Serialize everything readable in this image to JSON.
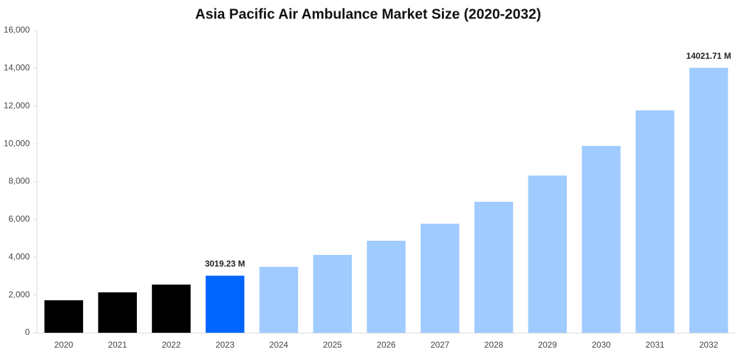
{
  "chart_data": {
    "type": "bar",
    "title": "Asia Pacific Air Ambulance Market Size (2020-2032)",
    "categories": [
      "2020",
      "2021",
      "2022",
      "2023",
      "2024",
      "2025",
      "2026",
      "2027",
      "2028",
      "2029",
      "2030",
      "2031",
      "2032"
    ],
    "values": [
      1720,
      2140,
      2550,
      3019.23,
      3490,
      4120,
      4870,
      5770,
      6930,
      8320,
      9890,
      11770,
      14021.71
    ],
    "value_labels": [
      null,
      null,
      null,
      "3019.23 M",
      null,
      null,
      null,
      null,
      null,
      null,
      null,
      null,
      "14021.71 M"
    ],
    "colors": [
      "#000000",
      "#000000",
      "#000000",
      "#0066ff",
      "#a0cbff",
      "#a0cbff",
      "#a0cbff",
      "#a0cbff",
      "#a0cbff",
      "#a0cbff",
      "#a0cbff",
      "#a0cbff",
      "#a0cbff"
    ],
    "ylim": [
      0,
      16000
    ],
    "yticks": [
      0,
      {
        "value": 2000,
        "label": "2,000"
      },
      {
        "value": 4000,
        "label": "4,000"
      },
      {
        "value": 6000,
        "label": "6,000"
      },
      {
        "value": 8000,
        "label": "8,000"
      },
      {
        "value": 10000,
        "label": "10,000"
      },
      {
        "value": 12000,
        "label": "12,000"
      },
      {
        "value": 14000,
        "label": "14,000"
      },
      {
        "value": 16000,
        "label": "16,000"
      }
    ],
    "grid": false
  }
}
